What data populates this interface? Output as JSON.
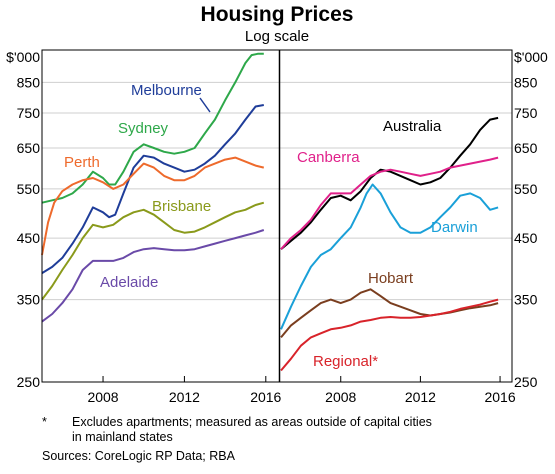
{
  "chart_data": {
    "type": "line",
    "title": "Housing Prices",
    "subtitle": "Log scale",
    "y_unit": "$'000",
    "y_scale": "log",
    "ylim": [
      250,
      970
    ],
    "yticks": [
      250,
      350,
      450,
      550,
      650,
      750,
      850
    ],
    "xlim": [
      2005.0,
      2016.6
    ],
    "xticks": [
      2008,
      2012,
      2016
    ],
    "grid": "horizontal",
    "panels": [
      {
        "series": [
          {
            "name": "Sydney",
            "color": "#2ea84a",
            "x": [
              2005.0,
              2005.5,
              2006.0,
              2006.5,
              2007.0,
              2007.5,
              2008.0,
              2008.3,
              2008.6,
              2009.0,
              2009.5,
              2010.0,
              2010.5,
              2011.0,
              2011.5,
              2012.0,
              2012.5,
              2013.0,
              2013.5,
              2014.0,
              2014.5,
              2015.0,
              2015.3,
              2015.6,
              2015.9
            ],
            "y": [
              520,
              525,
              530,
              540,
              560,
              590,
              575,
              560,
              560,
              590,
              640,
              660,
              650,
              640,
              635,
              640,
              650,
              690,
              730,
              790,
              850,
              920,
              950,
              955,
              955
            ]
          },
          {
            "name": "Melbourne",
            "color": "#1f3d99",
            "x": [
              2005.0,
              2005.5,
              2006.0,
              2006.5,
              2007.0,
              2007.5,
              2008.0,
              2008.3,
              2008.6,
              2009.0,
              2009.5,
              2010.0,
              2010.5,
              2011.0,
              2011.5,
              2012.0,
              2012.5,
              2013.0,
              2013.5,
              2014.0,
              2014.5,
              2015.0,
              2015.5,
              2015.9
            ],
            "y": [
              390,
              400,
              415,
              440,
              470,
              510,
              500,
              490,
              495,
              540,
              600,
              630,
              625,
              610,
              600,
              590,
              595,
              610,
              630,
              660,
              690,
              730,
              770,
              775
            ]
          },
          {
            "name": "Perth",
            "color": "#ee6a2c",
            "x": [
              2005.0,
              2005.3,
              2005.6,
              2006.0,
              2006.5,
              2007.0,
              2007.5,
              2008.0,
              2008.5,
              2009.0,
              2009.5,
              2010.0,
              2010.5,
              2011.0,
              2011.5,
              2012.0,
              2012.5,
              2013.0,
              2013.5,
              2014.0,
              2014.5,
              2015.0,
              2015.5,
              2015.9
            ],
            "y": [
              420,
              480,
              520,
              545,
              560,
              570,
              575,
              565,
              550,
              560,
              585,
              610,
              600,
              580,
              570,
              570,
              580,
              600,
              610,
              620,
              625,
              615,
              605,
              600
            ]
          },
          {
            "name": "Brisbane",
            "color": "#8a9a1b",
            "x": [
              2005.0,
              2005.5,
              2006.0,
              2006.5,
              2007.0,
              2007.5,
              2008.0,
              2008.5,
              2009.0,
              2009.5,
              2010.0,
              2010.5,
              2011.0,
              2011.5,
              2012.0,
              2012.5,
              2013.0,
              2013.5,
              2014.0,
              2014.5,
              2015.0,
              2015.5,
              2015.9
            ],
            "y": [
              350,
              370,
              395,
              420,
              450,
              475,
              470,
              475,
              490,
              500,
              505,
              495,
              480,
              465,
              460,
              462,
              470,
              480,
              490,
              500,
              505,
              515,
              520
            ]
          },
          {
            "name": "Adelaide",
            "color": "#6a4aa8",
            "x": [
              2005.0,
              2005.5,
              2006.0,
              2006.5,
              2007.0,
              2007.5,
              2008.0,
              2008.5,
              2009.0,
              2009.5,
              2010.0,
              2010.5,
              2011.0,
              2011.5,
              2012.0,
              2012.5,
              2013.0,
              2013.5,
              2014.0,
              2014.5,
              2015.0,
              2015.5,
              2015.9
            ],
            "y": [
              320,
              330,
              345,
              365,
              395,
              410,
              410,
              410,
              415,
              425,
              430,
              432,
              430,
              428,
              428,
              430,
              435,
              440,
              445,
              450,
              455,
              460,
              465
            ]
          }
        ]
      },
      {
        "series": [
          {
            "name": "Australia",
            "color": "#000000",
            "x": [
              2005.0,
              2005.5,
              2006.0,
              2006.5,
              2007.0,
              2007.5,
              2008.0,
              2008.5,
              2009.0,
              2009.5,
              2010.0,
              2010.5,
              2011.0,
              2011.5,
              2012.0,
              2012.5,
              2013.0,
              2013.5,
              2014.0,
              2014.5,
              2015.0,
              2015.5,
              2015.9
            ],
            "y": [
              430,
              445,
              460,
              480,
              505,
              530,
              535,
              525,
              545,
              575,
              595,
              590,
              580,
              570,
              560,
              565,
              575,
              600,
              630,
              660,
              700,
              730,
              735
            ]
          },
          {
            "name": "Canberra",
            "color": "#e0218a",
            "x": [
              2005.0,
              2005.5,
              2006.0,
              2006.5,
              2007.0,
              2007.5,
              2008.0,
              2008.5,
              2009.0,
              2009.5,
              2010.0,
              2010.5,
              2011.0,
              2011.5,
              2012.0,
              2012.5,
              2013.0,
              2013.5,
              2014.0,
              2014.5,
              2015.0,
              2015.5,
              2015.9
            ],
            "y": [
              430,
              450,
              465,
              485,
              515,
              540,
              540,
              540,
              560,
              580,
              590,
              595,
              590,
              585,
              580,
              585,
              590,
              600,
              605,
              610,
              615,
              620,
              625
            ]
          },
          {
            "name": "Darwin",
            "color": "#1aa0d8",
            "x": [
              2005.0,
              2005.5,
              2006.0,
              2006.5,
              2007.0,
              2007.5,
              2008.0,
              2008.5,
              2009.0,
              2009.3,
              2009.6,
              2010.0,
              2010.5,
              2011.0,
              2011.5,
              2012.0,
              2012.5,
              2013.0,
              2013.5,
              2014.0,
              2014.5,
              2015.0,
              2015.5,
              2015.9
            ],
            "y": [
              310,
              340,
              370,
              400,
              420,
              430,
              450,
              470,
              510,
              540,
              560,
              540,
              500,
              470,
              460,
              460,
              470,
              490,
              510,
              535,
              540,
              530,
              505,
              510
            ]
          },
          {
            "name": "Hobart",
            "color": "#7a3e1f",
            "x": [
              2005.0,
              2005.5,
              2006.0,
              2006.5,
              2007.0,
              2007.5,
              2008.0,
              2008.5,
              2009.0,
              2009.5,
              2010.0,
              2010.5,
              2011.0,
              2011.5,
              2012.0,
              2012.5,
              2013.0,
              2013.5,
              2014.0,
              2014.5,
              2015.0,
              2015.5,
              2015.9
            ],
            "y": [
              300,
              315,
              325,
              335,
              345,
              350,
              345,
              350,
              360,
              365,
              355,
              345,
              340,
              335,
              330,
              328,
              330,
              332,
              335,
              338,
              340,
              342,
              345
            ]
          },
          {
            "name": "Regional*",
            "color": "#d8232a",
            "x": [
              2005.0,
              2005.5,
              2006.0,
              2006.5,
              2007.0,
              2007.5,
              2008.0,
              2008.5,
              2009.0,
              2009.5,
              2010.0,
              2010.5,
              2011.0,
              2011.5,
              2012.0,
              2012.5,
              2013.0,
              2013.5,
              2014.0,
              2014.5,
              2015.0,
              2015.5,
              2015.9
            ],
            "y": [
              262,
              275,
              290,
              300,
              305,
              310,
              312,
              315,
              320,
              322,
              325,
              326,
              325,
              325,
              326,
              328,
              330,
              333,
              337,
              340,
              343,
              347,
              350
            ]
          }
        ]
      }
    ]
  },
  "footnote": {
    "marker": "*",
    "text_line1": "Excludes apartments; measured as areas outside of capital cities",
    "text_line2": "in mainland states"
  },
  "sources": "Sources:   CoreLogic RP Data; RBA"
}
